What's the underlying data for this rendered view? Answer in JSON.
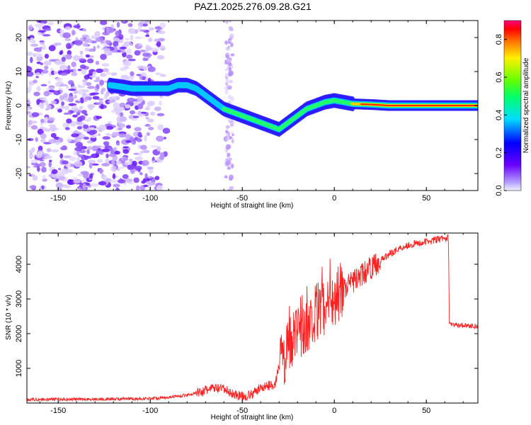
{
  "title": "PAZ1.2025.276.09.28.G21",
  "chart_data": [
    {
      "type": "heatmap",
      "name": "spectrogram",
      "xlabel": "Height of straight line (km)",
      "ylabel": "Frequency (Hz)",
      "xlim": [
        -167,
        78
      ],
      "ylim": [
        -25,
        25
      ],
      "xticks": [
        -150,
        -100,
        -50,
        0,
        50
      ],
      "xtick_labels": [
        "-150",
        "-100",
        "-50",
        "0",
        "50"
      ],
      "yticks": [
        -20,
        -10,
        0,
        10,
        20
      ],
      "ytick_labels": [
        "-20",
        "-10",
        "0",
        "10",
        "20"
      ],
      "ridge": {
        "x": [
          -122,
          -115,
          -110,
          -105,
          -100,
          -95,
          -90,
          -85,
          -80,
          -75,
          -70,
          -65,
          -60,
          -55,
          -50,
          -45,
          -40,
          -35,
          -30,
          -25,
          -20,
          -15,
          -10,
          -5,
          0,
          5,
          10,
          20,
          30,
          40,
          50,
          60,
          70,
          78
        ],
        "y": [
          6,
          5.5,
          5,
          5,
          5,
          5,
          5,
          6,
          6,
          5,
          3,
          1,
          -1,
          -2,
          -3,
          -4,
          -5,
          -6,
          -7,
          -5,
          -3,
          -1,
          0,
          1,
          1.5,
          1,
          0.5,
          0.3,
          0,
          0,
          0,
          0,
          0,
          0
        ]
      },
      "colorbar": {
        "label": "Normalized spectral amplitude",
        "range": [
          0,
          0.9
        ],
        "ticks": [
          0.0,
          0.2,
          0.4,
          0.6,
          0.8
        ],
        "tick_labels": [
          "0.0",
          "0.2",
          "0.4",
          "0.6",
          "0.8"
        ]
      }
    },
    {
      "type": "line",
      "name": "snr",
      "xlabel": "Height of straight line (km)",
      "ylabel": "SNR (10 * v/v)",
      "xlim": [
        -167,
        78
      ],
      "ylim": [
        0,
        4900
      ],
      "xticks": [
        -150,
        -100,
        -50,
        0,
        50
      ],
      "xtick_labels": [
        "-150",
        "-100",
        "-50",
        "0",
        "50"
      ],
      "yticks": [
        1000,
        2000,
        3000,
        4000
      ],
      "ytick_labels": [
        "1000",
        "2000",
        "3000",
        "4000"
      ],
      "color": "#ff2020",
      "series": [
        {
          "name": "SNR",
          "x": [
            -167,
            -150,
            -130,
            -110,
            -100,
            -90,
            -80,
            -72,
            -66,
            -60,
            -55,
            -50,
            -45,
            -40,
            -35,
            -32,
            -29,
            -27,
            -25,
            -22,
            -20,
            -17,
            -15,
            -12,
            -10,
            -8,
            -5,
            -3,
            0,
            3,
            5,
            8,
            10,
            15,
            20,
            25,
            30,
            35,
            40,
            45,
            50,
            55,
            60,
            62,
            62.5,
            65,
            70,
            78
          ],
          "y": [
            100,
            110,
            110,
            120,
            130,
            170,
            230,
            330,
            430,
            400,
            260,
            190,
            240,
            440,
            510,
            560,
            1400,
            1300,
            1700,
            1900,
            2000,
            2100,
            2200,
            2400,
            2600,
            2700,
            2800,
            2900,
            3000,
            3200,
            3300,
            3400,
            3500,
            3700,
            3900,
            4100,
            4300,
            4450,
            4550,
            4600,
            4650,
            4700,
            4750,
            4750,
            2300,
            2250,
            2250,
            2200
          ]
        }
      ]
    }
  ]
}
